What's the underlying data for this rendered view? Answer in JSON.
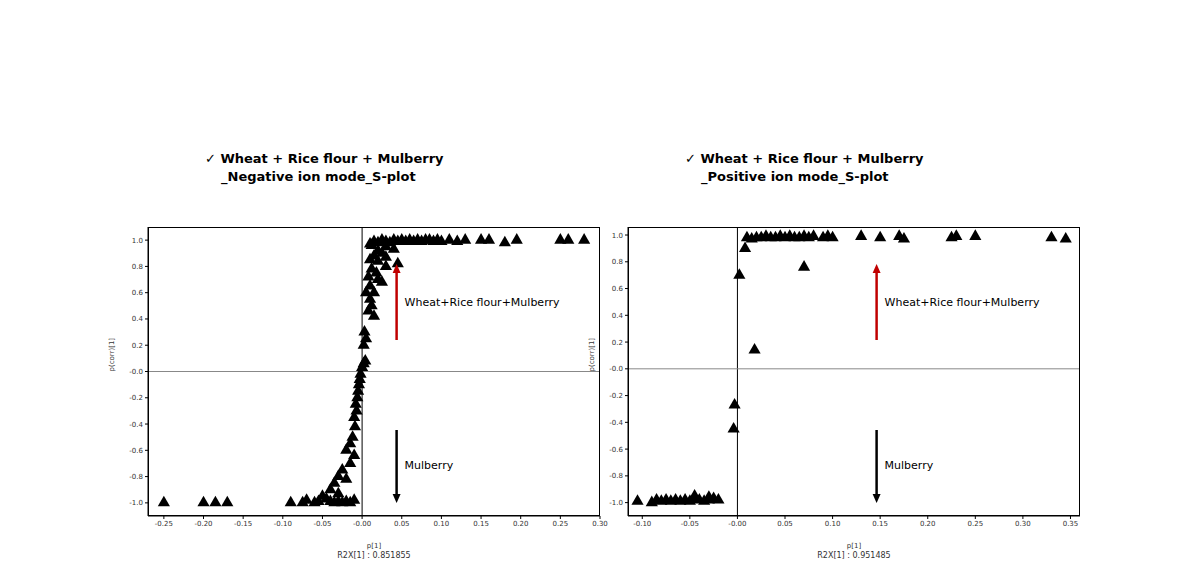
{
  "chart_data": [
    {
      "type": "scatter",
      "title": "✓ Wheat + Rice flour + Mulberry",
      "subtitle": "_Negative ion mode_S-plot",
      "x_label": "p[1]",
      "y_label": "p(corr)[1]",
      "footer": "R2X[1] : 0.851855",
      "marker": "triangle",
      "color": "#000000",
      "annotations": [
        {
          "text": "Wheat+Rice flour+Mulberry",
          "color": "#c00000"
        },
        {
          "text": "Mulberry",
          "color": "#000000"
        }
      ],
      "x": [
        0.28,
        0.26,
        0.25,
        0.195,
        0.18,
        0.16,
        0.15,
        0.13,
        0.12,
        0.11,
        0.1,
        0.095,
        0.09,
        0.085,
        0.08,
        0.075,
        0.07,
        0.065,
        0.06,
        0.055,
        0.05,
        0.045,
        0.04,
        0.035,
        0.03,
        0.025,
        0.02,
        0.015,
        0.012,
        0.01,
        0.03,
        0.04,
        0.02,
        0.025,
        0.015,
        0.03,
        0.01,
        0.02,
        0.045,
        0.03,
        0.012,
        0.018,
        0.008,
        0.02,
        0.025,
        0.01,
        0.005,
        0.015,
        0.01,
        0.012,
        0.008,
        0.015,
        0.003,
        0.005,
        0.002,
        0.004,
        0.002,
        0.0,
        -0.002,
        -0.003,
        -0.004,
        -0.005,
        -0.006,
        -0.008,
        -0.007,
        -0.01,
        -0.009,
        -0.012,
        -0.015,
        -0.02,
        -0.01,
        -0.015,
        -0.025,
        -0.03,
        -0.02,
        -0.035,
        -0.04,
        -0.03,
        -0.05,
        -0.045,
        -0.04,
        -0.035,
        -0.03,
        -0.025,
        -0.02,
        -0.015,
        -0.01,
        -0.055,
        -0.06,
        -0.07,
        -0.075,
        -0.09,
        -0.17,
        -0.185,
        -0.2,
        -0.25
      ],
      "values": [
        1.0,
        1.0,
        1.0,
        1.0,
        0.98,
        1.0,
        1.0,
        1.0,
        0.99,
        1.0,
        0.99,
        1.0,
        0.99,
        1.0,
        1.0,
        0.99,
        1.0,
        0.99,
        1.0,
        0.99,
        1.0,
        0.99,
        1.0,
        0.98,
        0.99,
        1.0,
        0.98,
        0.99,
        0.96,
        0.97,
        0.95,
        0.93,
        0.92,
        0.9,
        0.88,
        0.87,
        0.85,
        0.84,
        0.82,
        0.8,
        0.78,
        0.75,
        0.72,
        0.7,
        0.68,
        0.65,
        0.6,
        0.6,
        0.55,
        0.5,
        0.46,
        0.42,
        0.3,
        0.25,
        0.2,
        0.08,
        0.06,
        0.03,
        -0.02,
        -0.06,
        -0.1,
        -0.15,
        -0.2,
        -0.25,
        -0.3,
        -0.35,
        -0.42,
        -0.5,
        -0.55,
        -0.6,
        -0.64,
        -0.7,
        -0.75,
        -0.8,
        -0.82,
        -0.85,
        -0.9,
        -0.93,
        -0.95,
        -0.97,
        -0.99,
        -1.0,
        -0.99,
        -1.0,
        -0.99,
        -1.0,
        -0.98,
        -0.99,
        -1.0,
        -0.98,
        -1.0,
        -1.0,
        -1.0,
        -1.0,
        -1.0,
        -1.0
      ],
      "xlim": [
        -0.27,
        0.3
      ],
      "xticks": [
        {
          "value": -0.25,
          "label": "-0.25"
        },
        {
          "value": -0.2,
          "label": "-0.20"
        },
        {
          "value": -0.15,
          "label": "-0.15"
        },
        {
          "value": -0.1,
          "label": "-0.10"
        },
        {
          "value": -0.05,
          "label": "-0.05"
        },
        {
          "value": 0,
          "label": "-0.00"
        },
        {
          "value": 0.05,
          "label": "0.05"
        },
        {
          "value": 0.1,
          "label": "0.10"
        },
        {
          "value": 0.15,
          "label": "0.15"
        },
        {
          "value": 0.2,
          "label": "0.20"
        },
        {
          "value": 0.25,
          "label": "0.25"
        },
        {
          "value": 0.3,
          "label": "0.30"
        }
      ],
      "ylim": [
        -1.1,
        1.1
      ],
      "yticks": [
        {
          "value": 1,
          "label": "1.0"
        },
        0.8,
        0.6,
        0.4,
        0.2,
        {
          "value": 0,
          "label": "-0.0"
        },
        -0.2,
        -0.4,
        -0.6,
        -0.8,
        {
          "value": -1,
          "label": "-1.0"
        }
      ]
    },
    {
      "type": "scatter",
      "title": "✓ Wheat + Rice flour + Mulberry",
      "subtitle": "_Positive ion mode_S-plot",
      "x_label": "p[1]",
      "y_label": "p(corr)[1]",
      "footer": "R2X[1] : 0.951485",
      "marker": "triangle",
      "color": "#000000",
      "annotations": [
        {
          "text": "Wheat+Rice flour+Mulberry",
          "color": "#c00000"
        },
        {
          "text": "Mulberry",
          "color": "#000000"
        }
      ],
      "x": [
        0.345,
        0.33,
        0.25,
        0.23,
        0.225,
        0.175,
        0.17,
        0.15,
        0.13,
        0.1,
        0.095,
        0.09,
        0.08,
        0.075,
        0.07,
        0.065,
        0.06,
        0.055,
        0.05,
        0.045,
        0.04,
        0.035,
        0.03,
        0.025,
        0.02,
        0.015,
        0.01,
        0.07,
        0.008,
        0.002,
        0.018,
        -0.003,
        -0.004,
        -0.02,
        -0.025,
        -0.03,
        -0.035,
        -0.04,
        -0.045,
        -0.05,
        -0.055,
        -0.06,
        -0.065,
        -0.07,
        -0.075,
        -0.08,
        -0.085,
        -0.09,
        -0.105,
        -0.045,
        -0.03
      ],
      "values": [
        0.97,
        0.98,
        0.99,
        0.99,
        0.98,
        0.97,
        0.99,
        0.98,
        0.99,
        0.98,
        0.99,
        0.98,
        0.99,
        0.98,
        0.99,
        0.98,
        0.98,
        0.99,
        0.98,
        0.99,
        0.98,
        0.98,
        0.99,
        0.98,
        0.98,
        0.97,
        0.98,
        0.76,
        0.9,
        0.7,
        0.14,
        -0.27,
        -0.45,
        -0.98,
        -0.97,
        -0.98,
        -0.99,
        -0.98,
        -0.97,
        -0.99,
        -0.98,
        -0.99,
        -0.98,
        -0.99,
        -0.98,
        -0.99,
        -0.98,
        -1.0,
        -0.99,
        -0.95,
        -0.96
      ],
      "xlim": [
        -0.115,
        0.36
      ],
      "xticks": [
        {
          "value": -0.1,
          "label": "-0.10"
        },
        {
          "value": -0.05,
          "label": "-0.05"
        },
        {
          "value": 0,
          "label": "-0.00"
        },
        {
          "value": 0.05,
          "label": "0.05"
        },
        {
          "value": 0.1,
          "label": "0.10"
        },
        {
          "value": 0.15,
          "label": "0.15"
        },
        {
          "value": 0.2,
          "label": "0.20"
        },
        {
          "value": 0.25,
          "label": "0.25"
        },
        {
          "value": 0.3,
          "label": "0.30"
        },
        {
          "value": 0.35,
          "label": "0.35"
        }
      ],
      "ylim": [
        -1.1,
        1.06
      ],
      "yticks": [
        {
          "value": 1,
          "label": "1.0"
        },
        0.8,
        0.6,
        0.4,
        0.2,
        {
          "value": 0,
          "label": "-0.0"
        },
        -0.2,
        -0.4,
        -0.6,
        -0.8,
        {
          "value": -1,
          "label": "-1.0"
        }
      ]
    }
  ]
}
